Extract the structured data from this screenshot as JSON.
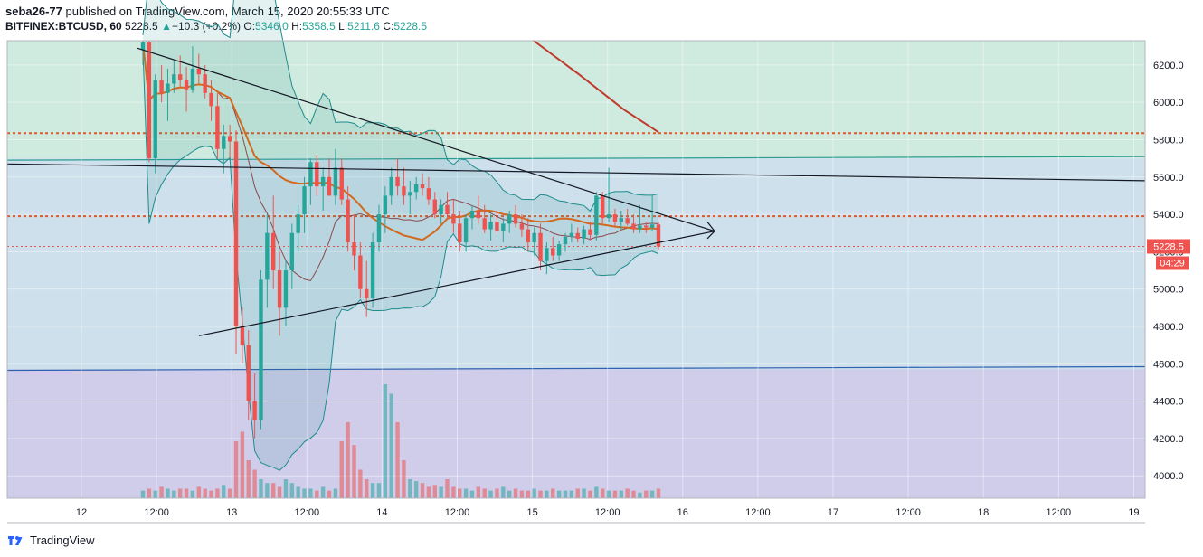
{
  "header": {
    "author": "seba26-77",
    "published_text": "published on TradingView.com, March 15, 2020 20:55:33 UTC",
    "symbol": "BITFINEX:BTCUSD, 60",
    "last": "5228.5",
    "change": "+10.3 (+0.2%)",
    "o_label": "O:",
    "o": "5346.0",
    "h_label": "H:",
    "h": "5358.5",
    "l_label": "L:",
    "l": "5211.6",
    "c_label": "C:",
    "c": "5228.5"
  },
  "footer": {
    "brand": "TradingView"
  },
  "price_tag": {
    "price": "5228.5",
    "countdown": "04:29"
  },
  "colors": {
    "up": "#26a69a",
    "down": "#ef5350",
    "zone_green": "#cfeadf",
    "zone_blue": "#cde0ec",
    "zone_purple": "#cfcdea",
    "bb": "#1e8c8c",
    "ma_orange": "#d2691e",
    "ma_red": "#c0392b"
  },
  "chart_data": {
    "type": "candlestick",
    "x_ticks": [
      "12",
      "12:00",
      "13",
      "12:00",
      "14",
      "12:00",
      "15",
      "12:00",
      "16",
      "12:00",
      "17",
      "12:00",
      "18",
      "12:00",
      "19"
    ],
    "y_ticks": [
      "6200.0",
      "6000.0",
      "5800.0",
      "5600.0",
      "5400.0",
      "5200.0",
      "5000.0",
      "4800.0",
      "4600.0",
      "4400.0",
      "4200.0",
      "4000.0"
    ],
    "ylim": [
      3880,
      6330
    ],
    "y_tick_values": [
      6200,
      6000,
      5800,
      5600,
      5400,
      5200,
      5000,
      4800,
      4600,
      4400,
      4200,
      4000
    ],
    "horizontal_levels": [
      {
        "price": 5835,
        "style": "dotted",
        "color": "#e0582a"
      },
      {
        "price": 5390,
        "style": "dotted",
        "color": "#e0582a"
      },
      {
        "price": 5228.5,
        "style": "dotted",
        "color": "#ef5350"
      }
    ],
    "zones": [
      {
        "from": 5700,
        "to": 6330,
        "color": "zone_green"
      },
      {
        "from": 4570,
        "to": 5700,
        "color": "zone_blue"
      },
      {
        "from": 3880,
        "to": 4570,
        "color": "zone_purple"
      }
    ],
    "candles": [
      [
        6280,
        6330,
        6200,
        6320
      ],
      [
        6320,
        6330,
        5680,
        5700
      ],
      [
        5700,
        6150,
        5620,
        6120
      ],
      [
        6120,
        6200,
        6000,
        6050
      ],
      [
        6050,
        6180,
        5900,
        6100
      ],
      [
        6100,
        6220,
        6050,
        6150
      ],
      [
        6150,
        6250,
        6080,
        6120
      ],
      [
        6120,
        6190,
        5950,
        6070
      ],
      [
        6070,
        6300,
        6050,
        6180
      ],
      [
        6180,
        6260,
        6100,
        6150
      ],
      [
        6150,
        6200,
        6020,
        6050
      ],
      [
        6050,
        6120,
        5900,
        5980
      ],
      [
        5980,
        6050,
        5700,
        5750
      ],
      [
        5750,
        5880,
        5620,
        5820
      ],
      [
        5820,
        5880,
        5700,
        5790
      ],
      [
        5790,
        5850,
        4650,
        4800
      ],
      [
        4800,
        4900,
        4600,
        4700
      ],
      [
        4700,
        4780,
        4300,
        4400
      ],
      [
        4400,
        4550,
        4200,
        4300
      ],
      [
        4300,
        5100,
        4250,
        5050
      ],
      [
        5050,
        5400,
        4900,
        5300
      ],
      [
        5300,
        5500,
        5000,
        5100
      ],
      [
        5100,
        5200,
        4750,
        4900
      ],
      [
        4900,
        5150,
        4800,
        5100
      ],
      [
        5100,
        5350,
        5000,
        5300
      ],
      [
        5300,
        5450,
        5200,
        5400
      ],
      [
        5400,
        5600,
        5300,
        5550
      ],
      [
        5550,
        5700,
        5450,
        5680
      ],
      [
        5680,
        5720,
        5500,
        5550
      ],
      [
        5550,
        5650,
        5420,
        5600
      ],
      [
        5600,
        5700,
        5500,
        5500
      ],
      [
        5500,
        5750,
        5450,
        5650
      ],
      [
        5650,
        5700,
        5450,
        5480
      ],
      [
        5480,
        5550,
        5200,
        5250
      ],
      [
        5250,
        5400,
        5100,
        5180
      ],
      [
        5180,
        5250,
        4950,
        5000
      ],
      [
        5000,
        5150,
        4850,
        4950
      ],
      [
        4950,
        5300,
        4900,
        5250
      ],
      [
        5250,
        5450,
        5200,
        5400
      ],
      [
        5400,
        5550,
        5300,
        5500
      ],
      [
        5500,
        5650,
        5450,
        5600
      ],
      [
        5600,
        5700,
        5500,
        5550
      ],
      [
        5550,
        5650,
        5450,
        5500
      ],
      [
        5500,
        5580,
        5400,
        5520
      ],
      [
        5520,
        5600,
        5480,
        5560
      ],
      [
        5560,
        5620,
        5500,
        5540
      ],
      [
        5540,
        5600,
        5450,
        5480
      ],
      [
        5480,
        5520,
        5380,
        5400
      ],
      [
        5400,
        5480,
        5350,
        5450
      ],
      [
        5450,
        5520,
        5380,
        5400
      ],
      [
        5400,
        5480,
        5300,
        5350
      ],
      [
        5350,
        5420,
        5200,
        5250
      ],
      [
        5250,
        5400,
        5200,
        5380
      ],
      [
        5380,
        5450,
        5320,
        5420
      ],
      [
        5420,
        5500,
        5350,
        5380
      ],
      [
        5380,
        5450,
        5300,
        5320
      ],
      [
        5320,
        5400,
        5260,
        5360
      ],
      [
        5360,
        5420,
        5300,
        5310
      ],
      [
        5310,
        5380,
        5250,
        5350
      ],
      [
        5350,
        5420,
        5300,
        5400
      ],
      [
        5400,
        5450,
        5330,
        5350
      ],
      [
        5350,
        5400,
        5280,
        5320
      ],
      [
        5320,
        5380,
        5200,
        5250
      ],
      [
        5250,
        5330,
        5180,
        5300
      ],
      [
        5300,
        5350,
        5100,
        5150
      ],
      [
        5150,
        5250,
        5080,
        5220
      ],
      [
        5220,
        5280,
        5150,
        5180
      ],
      [
        5180,
        5260,
        5150,
        5240
      ],
      [
        5240,
        5300,
        5200,
        5280
      ],
      [
        5280,
        5350,
        5250,
        5300
      ],
      [
        5300,
        5330,
        5250,
        5270
      ],
      [
        5270,
        5340,
        5240,
        5320
      ],
      [
        5320,
        5360,
        5260,
        5290
      ],
      [
        5290,
        5520,
        5260,
        5500
      ],
      [
        5500,
        5520,
        5350,
        5380
      ],
      [
        5380,
        5650,
        5360,
        5400
      ],
      [
        5400,
        5430,
        5330,
        5360
      ],
      [
        5360,
        5420,
        5320,
        5380
      ],
      [
        5380,
        5430,
        5340,
        5350
      ],
      [
        5350,
        5400,
        5300,
        5320
      ],
      [
        5320,
        5450,
        5300,
        5340
      ],
      [
        5340,
        5360,
        5300,
        5330
      ],
      [
        5330,
        5500,
        5310,
        5346
      ],
      [
        5346,
        5358.5,
        5211.6,
        5228.5
      ]
    ],
    "volume_relative": [
      0.04,
      0.05,
      0.04,
      0.06,
      0.05,
      0.04,
      0.05,
      0.05,
      0.04,
      0.06,
      0.05,
      0.04,
      0.05,
      0.07,
      0.05,
      0.3,
      0.35,
      0.2,
      0.15,
      0.1,
      0.08,
      0.08,
      0.06,
      0.1,
      0.08,
      0.06,
      0.05,
      0.05,
      0.04,
      0.06,
      0.04,
      0.05,
      0.3,
      0.4,
      0.28,
      0.15,
      0.1,
      0.08,
      0.08,
      0.6,
      0.55,
      0.4,
      0.2,
      0.1,
      0.09,
      0.08,
      0.06,
      0.07,
      0.06,
      0.1,
      0.06,
      0.05,
      0.05,
      0.04,
      0.06,
      0.05,
      0.04,
      0.05,
      0.06,
      0.04,
      0.05,
      0.04,
      0.04,
      0.05,
      0.04,
      0.04,
      0.05,
      0.04,
      0.04,
      0.04,
      0.05,
      0.05,
      0.04,
      0.06,
      0.05,
      0.04,
      0.04,
      0.04,
      0.05,
      0.04,
      0.03,
      0.04,
      0.04,
      0.05
    ],
    "triangle_lines": [
      {
        "from": [
          0,
          6290
        ],
        "to": [
          78,
          5310
        ]
      },
      {
        "from": [
          12,
          4750
        ],
        "to": [
          78,
          5310
        ]
      }
    ]
  }
}
